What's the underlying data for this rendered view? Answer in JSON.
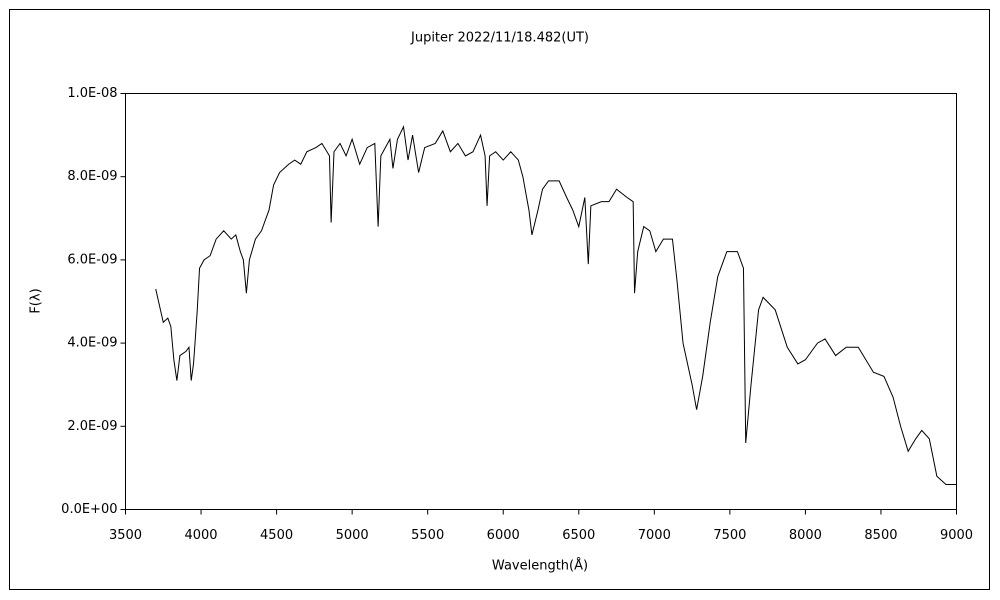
{
  "chart_data": {
    "type": "line",
    "title": "Jupiter  2022/11/18.482(UT)",
    "xlabel": "Wavelength(Å)",
    "ylabel": "F(λ)",
    "xlim": [
      3500,
      9000
    ],
    "xticks": [
      3500,
      4000,
      4500,
      5000,
      5500,
      6000,
      6500,
      7000,
      7500,
      8000,
      8500,
      9000
    ],
    "ylim": [
      0,
      1e-08
    ],
    "yticks": [
      {
        "value": 0,
        "label": "0.0E+00"
      },
      {
        "value": 2e-09,
        "label": "2.0E-09"
      },
      {
        "value": 4e-09,
        "label": "4.0E-09"
      },
      {
        "value": 6e-09,
        "label": "6.0E-09"
      },
      {
        "value": 8e-09,
        "label": "8.0E-09"
      },
      {
        "value": 1e-08,
        "label": "1.0E-08"
      }
    ],
    "grid": false,
    "x": [
      3700,
      3750,
      3780,
      3800,
      3820,
      3840,
      3860,
      3900,
      3920,
      3935,
      3950,
      3960,
      3975,
      3990,
      4020,
      4060,
      4100,
      4150,
      4200,
      4230,
      4260,
      4280,
      4300,
      4320,
      4360,
      4400,
      4450,
      4480,
      4520,
      4580,
      4620,
      4660,
      4700,
      4760,
      4800,
      4850,
      4861,
      4880,
      4920,
      4960,
      5000,
      5050,
      5100,
      5150,
      5172,
      5190,
      5250,
      5270,
      5300,
      5340,
      5370,
      5400,
      5440,
      5480,
      5550,
      5600,
      5650,
      5700,
      5750,
      5800,
      5850,
      5880,
      5893,
      5910,
      5950,
      6000,
      6050,
      6100,
      6130,
      6170,
      6190,
      6230,
      6260,
      6300,
      6370,
      6420,
      6460,
      6500,
      6540,
      6563,
      6580,
      6650,
      6700,
      6750,
      6820,
      6860,
      6869,
      6890,
      6930,
      6970,
      7010,
      7060,
      7120,
      7150,
      7190,
      7250,
      7280,
      7320,
      7370,
      7420,
      7480,
      7550,
      7590,
      7605,
      7640,
      7690,
      7720,
      7800,
      7880,
      7950,
      8000,
      8080,
      8130,
      8200,
      8270,
      8350,
      8450,
      8520,
      8580,
      8630,
      8680,
      8730,
      8770,
      8820,
      8870,
      8930,
      9000
    ],
    "series": [
      {
        "name": "F(λ)",
        "color": "#000000",
        "values": [
          5.3e-09,
          4.5e-09,
          4.6e-09,
          4.4e-09,
          3.6e-09,
          3.1e-09,
          3.7e-09,
          3.8e-09,
          3.9e-09,
          3.1e-09,
          3.5e-09,
          4e-09,
          4.8e-09,
          5.8e-09,
          6e-09,
          6.1e-09,
          6.5e-09,
          6.7e-09,
          6.5e-09,
          6.6e-09,
          6.2e-09,
          6e-09,
          5.2e-09,
          6e-09,
          6.5e-09,
          6.7e-09,
          7.2e-09,
          7.8e-09,
          8.1e-09,
          8.3e-09,
          8.4e-09,
          8.3e-09,
          8.6e-09,
          8.7e-09,
          8.8e-09,
          8.5e-09,
          6.9e-09,
          8.6e-09,
          8.8e-09,
          8.5e-09,
          8.9e-09,
          8.3e-09,
          8.7e-09,
          8.8e-09,
          6.8e-09,
          8.5e-09,
          8.9e-09,
          8.2e-09,
          8.9e-09,
          9.2e-09,
          8.4e-09,
          9e-09,
          8.1e-09,
          8.7e-09,
          8.8e-09,
          9.1e-09,
          8.6e-09,
          8.8e-09,
          8.5e-09,
          8.6e-09,
          9e-09,
          8.5e-09,
          7.3e-09,
          8.5e-09,
          8.6e-09,
          8.4e-09,
          8.6e-09,
          8.4e-09,
          8e-09,
          7.2e-09,
          6.6e-09,
          7.2e-09,
          7.7e-09,
          7.9e-09,
          7.9e-09,
          7.5e-09,
          7.2e-09,
          6.8e-09,
          7.5e-09,
          5.9e-09,
          7.3e-09,
          7.4e-09,
          7.4e-09,
          7.7e-09,
          7.5e-09,
          7.4e-09,
          5.2e-09,
          6.2e-09,
          6.8e-09,
          6.7e-09,
          6.2e-09,
          6.5e-09,
          6.5e-09,
          5.5e-09,
          4e-09,
          3e-09,
          2.4e-09,
          3.2e-09,
          4.5e-09,
          5.6e-09,
          6.2e-09,
          6.2e-09,
          5.8e-09,
          1.6e-09,
          3e-09,
          4.8e-09,
          5.1e-09,
          4.8e-09,
          3.9e-09,
          3.5e-09,
          3.6e-09,
          4e-09,
          4.1e-09,
          3.7e-09,
          3.9e-09,
          3.9e-09,
          3.3e-09,
          3.2e-09,
          2.7e-09,
          2e-09,
          1.4e-09,
          1.7e-09,
          1.9e-09,
          1.7e-09,
          8e-10,
          6e-10,
          6e-10
        ]
      }
    ]
  }
}
